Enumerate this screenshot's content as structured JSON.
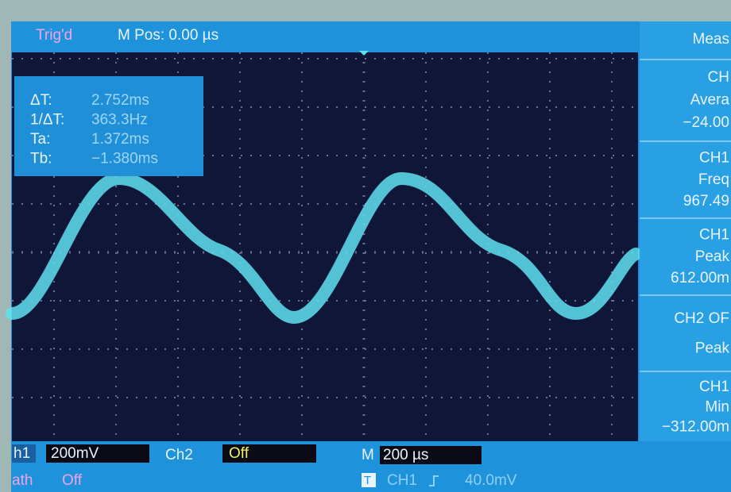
{
  "top_bar": {
    "status": "Trig'd",
    "position": "M Pos: 0.00 µs"
  },
  "cursor_readout": [
    {
      "label": "ΔT:",
      "value": "2.752ms"
    },
    {
      "label": "1/ΔT:",
      "value": "363.3Hz"
    },
    {
      "label": "Ta:",
      "value": "1.372ms"
    },
    {
      "label": "Tb:",
      "value": "−1.380ms"
    }
  ],
  "measure_panel": {
    "title": "Meas",
    "items": [
      {
        "lines": [
          "CH",
          "Avera",
          "−24.00"
        ]
      },
      {
        "lines": [
          "CH1",
          "Freq",
          "967.49"
        ]
      },
      {
        "lines": [
          "CH1",
          "Peak",
          "612.00m"
        ]
      },
      {
        "lines": [
          "CH2 OF",
          "Peak"
        ]
      },
      {
        "lines": [
          "CH1",
          "Min",
          "−312.00m"
        ]
      }
    ]
  },
  "bottom_bar": {
    "ch1_label": "h1",
    "ch1_scale": "200mV",
    "ch2_label": "Ch2",
    "ch2_state": "Off",
    "time_label": "M",
    "time_scale": "200 µs",
    "math_label": "ath",
    "math_state": "Off",
    "trigger_icon": "T",
    "trigger_source": "CH1",
    "trigger_level": "40.0mV"
  }
}
